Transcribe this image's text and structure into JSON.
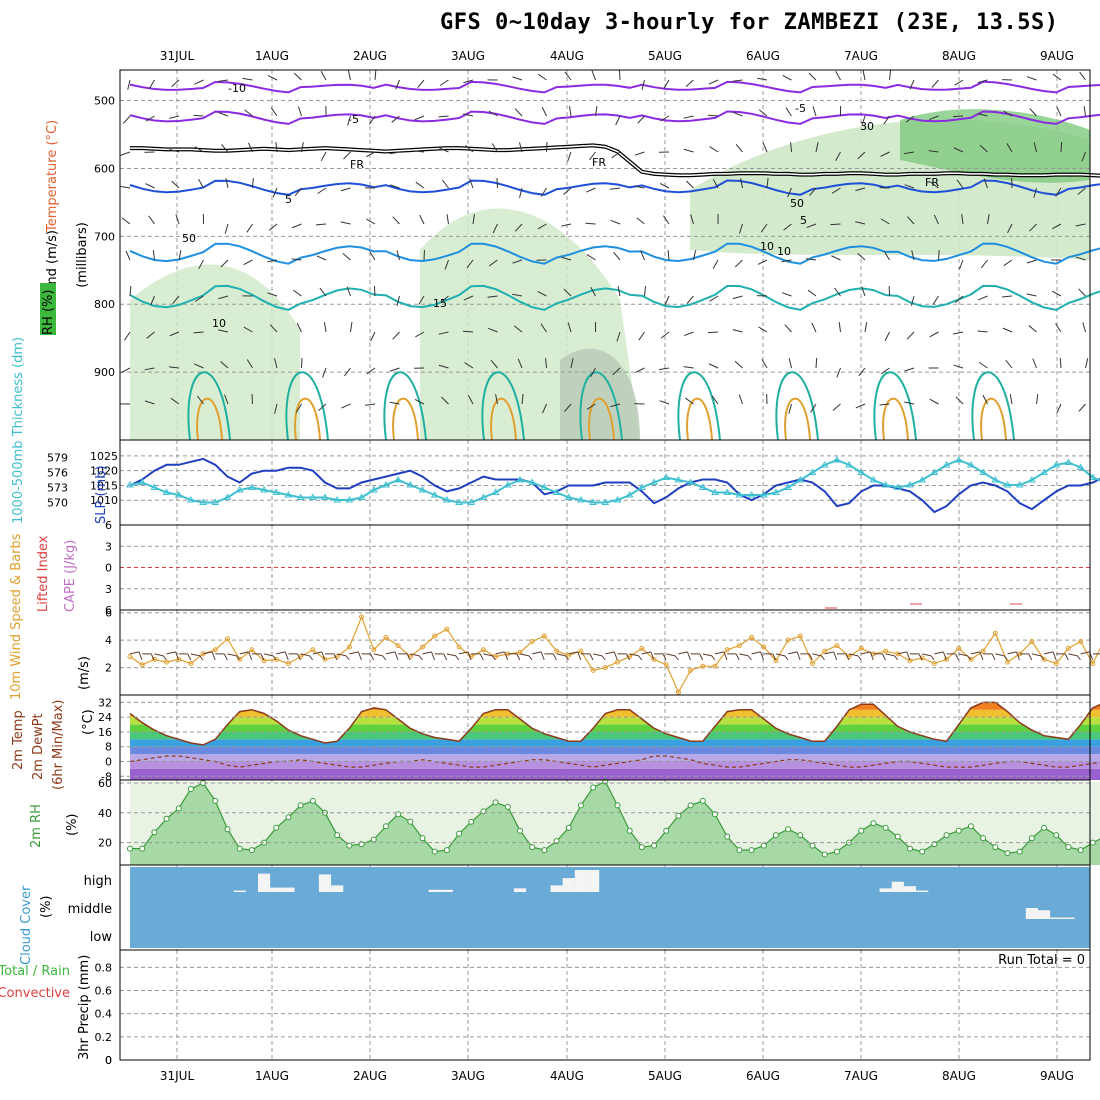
{
  "title": "GFS 0~10day 3-hourly for ZAMBEZI (23E, 13.5S)",
  "dates": [
    "31JUL",
    "1AUG",
    "2AUG",
    "3AUG",
    "4AUG",
    "5AUG",
    "6AUG",
    "7AUG",
    "8AUG",
    "9AUG"
  ],
  "colors": {
    "grid": "#999999",
    "rh_fill": "#cfe8c8",
    "slp": "#1f3fbf",
    "thickness": "#3fbfcf",
    "wind_speed": "#e0a030",
    "barbs": "#5a3a2a",
    "temp_line": "#8b3a1a",
    "rh2m": "#3a9a3a",
    "cloud": "#6aaad6",
    "cape_li": "#e04040"
  },
  "chart_data": [
    {
      "type": "contour",
      "panel": "upper_air",
      "ylabel_parts": [
        "Wind (m/s)",
        "Temperature (°C)",
        "RH (%)"
      ],
      "ylabel_unit": "(millibars)",
      "yticks": [
        500,
        600,
        700,
        800,
        900
      ],
      "ylim": [
        1000,
        455
      ],
      "contour_labels": [
        "-10",
        "-5",
        "-5",
        "FR",
        "FR",
        "FR",
        "5",
        "5",
        "10",
        "10",
        "15",
        "10",
        "30",
        "50",
        "50"
      ],
      "freezing_level_mb": [
        570,
        570,
        571,
        572,
        572,
        572,
        573,
        574,
        574,
        573,
        572,
        571,
        572,
        573,
        572,
        571,
        570,
        571,
        572,
        573,
        574,
        575,
        574,
        573,
        572,
        571,
        570,
        570,
        571,
        572,
        573,
        573,
        572,
        571,
        570,
        569,
        568,
        567,
        566,
        568,
        575,
        590,
        605,
        608,
        609,
        610,
        610,
        609,
        608,
        608,
        607,
        607,
        607,
        608,
        608,
        609,
        609,
        608,
        608,
        607,
        607,
        608,
        609,
        609,
        608,
        608,
        608,
        607,
        607,
        608,
        608,
        609,
        609,
        610,
        610,
        610,
        609,
        609,
        609,
        610,
        611
      ]
    },
    {
      "type": "line",
      "panel": "slp_thickness",
      "ylabel_left": "1000-500mb Thickness (dm)",
      "ylabel_right": "SLP (mb)",
      "yticks_left": [
        570,
        573,
        576,
        579
      ],
      "yticks_right": [
        1010,
        1015,
        1020,
        1025
      ],
      "series": [
        {
          "name": "SLP",
          "unit": "mb",
          "values": [
            1015,
            1017,
            1020,
            1022,
            1022,
            1023,
            1024,
            1022,
            1018,
            1016,
            1019,
            1020,
            1020,
            1021,
            1021,
            1020,
            1016,
            1014,
            1014,
            1016,
            1017,
            1018,
            1019,
            1020,
            1018,
            1015,
            1013,
            1014,
            1016,
            1018,
            1017,
            1017,
            1017,
            1016,
            1012,
            1013,
            1015,
            1015,
            1015,
            1016,
            1016,
            1016,
            1013,
            1009,
            1011,
            1014,
            1016,
            1017,
            1017,
            1016,
            1012,
            1010,
            1012,
            1015,
            1016,
            1017,
            1016,
            1013,
            1008,
            1009,
            1013,
            1015,
            1015,
            1014,
            1013,
            1010,
            1006,
            1008,
            1012,
            1015,
            1016,
            1015,
            1013,
            1009,
            1007,
            1010,
            1013,
            1015,
            1015,
            1016,
            1018
          ]
        },
        {
          "name": "Thickness",
          "unit": "dm",
          "values": [
            573.5,
            574,
            573,
            572,
            571.5,
            570.5,
            570,
            570,
            571,
            572.5,
            573,
            572.5,
            572,
            571.5,
            571,
            571,
            571,
            570.5,
            570.5,
            571,
            572.5,
            573.5,
            574.5,
            573.5,
            572.5,
            571.5,
            570.5,
            570,
            570,
            571,
            572,
            573.5,
            574.5,
            574,
            573,
            572,
            571,
            570.5,
            570,
            570,
            570.5,
            571.5,
            573,
            574,
            575,
            574.5,
            574,
            573,
            572,
            572,
            571.5,
            571.5,
            571.5,
            572,
            573,
            574.5,
            576,
            577.5,
            578.5,
            577.5,
            576,
            574.5,
            573.5,
            573,
            573.5,
            574.5,
            576,
            577.5,
            578.5,
            577.5,
            576,
            574.5,
            573.5,
            573.5,
            574.5,
            576,
            577.5,
            578,
            577,
            575,
            574
          ]
        }
      ]
    },
    {
      "type": "line",
      "panel": "cape_li",
      "ylabel": "Lifted Index",
      "ylabel2": "CAPE (J/kg)",
      "yticks": [
        -6,
        -3,
        0,
        3,
        6
      ],
      "ylim": [
        6,
        -6
      ],
      "series": [
        {
          "name": "Lifted Index",
          "values": []
        },
        {
          "name": "CAPE",
          "values": []
        }
      ]
    },
    {
      "type": "line",
      "panel": "wind10m",
      "ylabel": "10m Wind Speed & Barbs",
      "unit": "(m/s)",
      "yticks": [
        2,
        4,
        6
      ],
      "ylim": [
        0,
        6
      ],
      "series": [
        {
          "name": "Speed",
          "values": [
            2.8,
            2.2,
            2.6,
            2.4,
            2.6,
            2.3,
            3.0,
            3.3,
            4.1,
            2.6,
            3.3,
            2.5,
            2.6,
            2.3,
            2.8,
            3.3,
            2.6,
            2.8,
            3.5,
            5.7,
            3.3,
            4.2,
            3.6,
            2.8,
            3.5,
            4.3,
            4.8,
            3.5,
            2.8,
            3.3,
            2.8,
            3.0,
            3.1,
            3.9,
            4.3,
            3.2,
            2.9,
            3.2,
            1.8,
            2.0,
            2.4,
            2.8,
            3.4,
            2.6,
            2.2,
            0.2,
            1.8,
            2.1,
            2.1,
            3.3,
            3.6,
            4.2,
            3.5,
            2.5,
            4.0,
            4.3,
            2.3,
            3.2,
            3.6,
            2.8,
            3.4,
            3.0,
            3.2,
            3.0,
            2.5,
            2.7,
            2.3,
            2.6,
            3.4,
            2.6,
            3.2,
            4.5,
            2.4,
            3.0,
            3.9,
            2.6,
            2.3,
            3.4,
            3.9,
            2.3,
            4.1
          ]
        }
      ]
    },
    {
      "type": "area",
      "panel": "temp2m",
      "ylabel": "2m Temp",
      "ylabel2": "2m DewPt",
      "ylabel3": "(6hr Min/Max)",
      "unit": "(°C)",
      "yticks": [
        -8,
        0,
        8,
        16,
        24,
        32
      ],
      "ylim": [
        -10,
        36
      ],
      "series": [
        {
          "name": "2m Temp",
          "values": [
            26,
            21,
            17,
            14,
            12,
            10,
            9,
            12,
            20,
            27,
            28,
            26,
            22,
            17,
            14,
            12,
            10,
            11,
            18,
            27,
            29,
            28,
            23,
            18,
            15,
            13,
            12,
            11,
            18,
            26,
            28,
            28,
            23,
            18,
            15,
            13,
            11,
            11,
            18,
            26,
            28,
            28,
            23,
            18,
            15,
            13,
            11,
            11,
            19,
            27,
            28,
            28,
            23,
            18,
            15,
            13,
            11,
            11,
            19,
            28,
            31,
            31,
            25,
            19,
            16,
            14,
            12,
            11,
            20,
            29,
            32,
            32,
            27,
            21,
            17,
            14,
            13,
            12,
            20,
            29,
            32
          ]
        },
        {
          "name": "2m DewPt",
          "values": [
            0,
            1,
            2,
            3,
            3,
            2,
            1,
            0,
            -2,
            -3,
            -2,
            -1,
            0,
            0,
            1,
            0,
            -1,
            -2,
            -3,
            -3,
            -2,
            -1,
            0,
            0,
            1,
            0,
            -1,
            -2,
            -3,
            -3,
            -2,
            -1,
            0,
            1,
            1,
            0,
            -1,
            -2,
            -3,
            -2,
            -1,
            0,
            1,
            3,
            3,
            2,
            1,
            -1,
            -2,
            -3,
            -3,
            -2,
            -1,
            0,
            1,
            1,
            0,
            -1,
            -2,
            -3,
            -3,
            -2,
            -1,
            0,
            0,
            -1,
            -2,
            -3,
            -3,
            -3,
            -2,
            -1,
            0,
            0,
            -1,
            -2,
            -3,
            -3,
            -2,
            -1,
            0
          ]
        }
      ]
    },
    {
      "type": "area",
      "panel": "rh2m",
      "ylabel": "2m RH",
      "unit": "(%)",
      "yticks": [
        20,
        40,
        60
      ],
      "ylim": [
        5,
        62
      ],
      "series": [
        {
          "name": "2m RH",
          "values": [
            16,
            16,
            27,
            36,
            43,
            56,
            60,
            48,
            29,
            16,
            15,
            20,
            30,
            37,
            45,
            48,
            40,
            25,
            18,
            19,
            22,
            31,
            39,
            34,
            23,
            14,
            15,
            26,
            34,
            41,
            47,
            44,
            28,
            17,
            15,
            21,
            30,
            45,
            57,
            61,
            45,
            28,
            17,
            18,
            28,
            38,
            45,
            48,
            39,
            24,
            15,
            15,
            18,
            25,
            29,
            25,
            18,
            12,
            14,
            20,
            28,
            33,
            30,
            24,
            16,
            14,
            19,
            25,
            28,
            31,
            23,
            17,
            13,
            14,
            23,
            30,
            25,
            17,
            15,
            20,
            24
          ]
        }
      ]
    },
    {
      "type": "bar",
      "panel": "cloud",
      "ylabel": "Cloud Cover",
      "unit": "(%)",
      "levels": [
        "high",
        "middle",
        "low"
      ],
      "series": [
        {
          "name": "high",
          "values": [
            0,
            0,
            0,
            0,
            0,
            0,
            0,
            0,
            0,
            2,
            0,
            25,
            6,
            6,
            0,
            0,
            24,
            9,
            0,
            0,
            0,
            0,
            0,
            0,
            0,
            3,
            3,
            0,
            0,
            0,
            0,
            0,
            5,
            0,
            0,
            9,
            19,
            30,
            30,
            0,
            0,
            0,
            0,
            0,
            0,
            0,
            0,
            0,
            0,
            0,
            0,
            0,
            0,
            0,
            0,
            0,
            0,
            0,
            0,
            0,
            0,
            0,
            5,
            14,
            8,
            2,
            0,
            0,
            0,
            0,
            0,
            0,
            0,
            0,
            0,
            0,
            0,
            0,
            0,
            0,
            0
          ]
        },
        {
          "name": "middle",
          "values": [
            0,
            0,
            0,
            0,
            0,
            0,
            0,
            0,
            0,
            0,
            0,
            0,
            0,
            0,
            0,
            0,
            0,
            0,
            0,
            0,
            0,
            0,
            0,
            0,
            0,
            0,
            0,
            0,
            0,
            0,
            0,
            0,
            0,
            0,
            0,
            0,
            0,
            0,
            0,
            0,
            0,
            0,
            0,
            0,
            0,
            0,
            0,
            0,
            0,
            0,
            0,
            0,
            0,
            0,
            0,
            0,
            0,
            0,
            0,
            0,
            0,
            0,
            0,
            0,
            0,
            0,
            0,
            0,
            0,
            0,
            0,
            0,
            0,
            0,
            15,
            12,
            2,
            2,
            0,
            0,
            0
          ]
        },
        {
          "name": "low",
          "values": []
        }
      ]
    },
    {
      "type": "bar",
      "panel": "precip",
      "ylabel": "3hr Precip (mm)",
      "legend": [
        "Total / Rain",
        "Convective"
      ],
      "annotation": "Run Total = 0",
      "yticks": [
        0,
        0.2,
        0.4,
        0.6,
        0.8
      ],
      "ylim": [
        0,
        0.95
      ],
      "series": [
        {
          "name": "Total",
          "values": []
        }
      ]
    }
  ]
}
